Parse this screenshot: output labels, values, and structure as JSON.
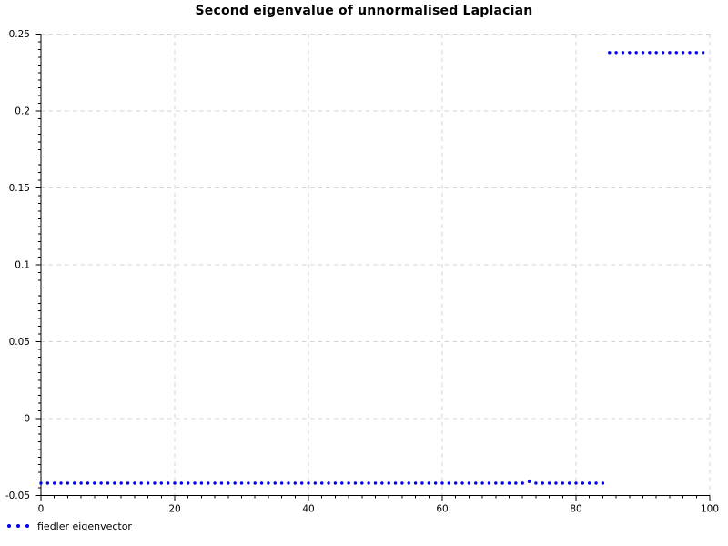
{
  "title": "Second eigenvalue of unnormalised Laplacian",
  "legend": {
    "label": "fiedler eigenvector"
  },
  "colors": {
    "points": "#0000ee",
    "grid": "#d4d4d4",
    "axis": "#000000",
    "background": "#ffffff",
    "text": "#000000"
  },
  "chart_data": {
    "type": "scatter",
    "title": "Second eigenvalue of unnormalised Laplacian",
    "xlabel": "",
    "ylabel": "",
    "xlim": [
      0,
      100
    ],
    "ylim": [
      -0.05,
      0.25
    ],
    "x_ticks": [
      0,
      20,
      40,
      60,
      80,
      100
    ],
    "x_tick_labels": [
      "0",
      "20",
      "40",
      "60",
      "80",
      "100"
    ],
    "y_ticks": [
      -0.05,
      0,
      0.05,
      0.1,
      0.15,
      0.2,
      0.25
    ],
    "y_tick_labels": [
      "-0.05",
      "0",
      "0.05",
      "0.1",
      "0.15",
      "0.2",
      "0.25"
    ],
    "x_minor_step": 2,
    "y_minor_step": 0.005,
    "grid": true,
    "grid_style": "dashed",
    "legend_position": "below-left",
    "marker": "dot",
    "series": [
      {
        "name": "fiedler eigenvector",
        "color": "#0000ee",
        "x": [
          0,
          1,
          2,
          3,
          4,
          5,
          6,
          7,
          8,
          9,
          10,
          11,
          12,
          13,
          14,
          15,
          16,
          17,
          18,
          19,
          20,
          21,
          22,
          23,
          24,
          25,
          26,
          27,
          28,
          29,
          30,
          31,
          32,
          33,
          34,
          35,
          36,
          37,
          38,
          39,
          40,
          41,
          42,
          43,
          44,
          45,
          46,
          47,
          48,
          49,
          50,
          51,
          52,
          53,
          54,
          55,
          56,
          57,
          58,
          59,
          60,
          61,
          62,
          63,
          64,
          65,
          66,
          67,
          68,
          69,
          70,
          71,
          72,
          73,
          74,
          75,
          76,
          77,
          78,
          79,
          80,
          81,
          82,
          83,
          84,
          85,
          86,
          87,
          88,
          89,
          90,
          91,
          92,
          93,
          94,
          95,
          96,
          97,
          98,
          99
        ],
        "y": [
          -0.042,
          -0.042,
          -0.042,
          -0.042,
          -0.042,
          -0.042,
          -0.042,
          -0.042,
          -0.042,
          -0.042,
          -0.042,
          -0.042,
          -0.042,
          -0.042,
          -0.042,
          -0.042,
          -0.042,
          -0.042,
          -0.042,
          -0.042,
          -0.042,
          -0.042,
          -0.042,
          -0.042,
          -0.042,
          -0.042,
          -0.042,
          -0.042,
          -0.042,
          -0.042,
          -0.042,
          -0.042,
          -0.042,
          -0.042,
          -0.042,
          -0.042,
          -0.042,
          -0.042,
          -0.042,
          -0.042,
          -0.042,
          -0.042,
          -0.042,
          -0.042,
          -0.042,
          -0.042,
          -0.042,
          -0.042,
          -0.042,
          -0.042,
          -0.042,
          -0.042,
          -0.042,
          -0.042,
          -0.042,
          -0.042,
          -0.042,
          -0.042,
          -0.042,
          -0.042,
          -0.042,
          -0.042,
          -0.042,
          -0.042,
          -0.042,
          -0.042,
          -0.042,
          -0.042,
          -0.042,
          -0.042,
          -0.042,
          -0.042,
          -0.042,
          -0.041,
          -0.042,
          -0.042,
          -0.042,
          -0.042,
          -0.042,
          -0.042,
          -0.042,
          -0.042,
          -0.042,
          -0.042,
          -0.042,
          0.238,
          0.238,
          0.238,
          0.238,
          0.238,
          0.238,
          0.238,
          0.238,
          0.238,
          0.238,
          0.238,
          0.238,
          0.238,
          0.238,
          0.238
        ]
      }
    ]
  }
}
